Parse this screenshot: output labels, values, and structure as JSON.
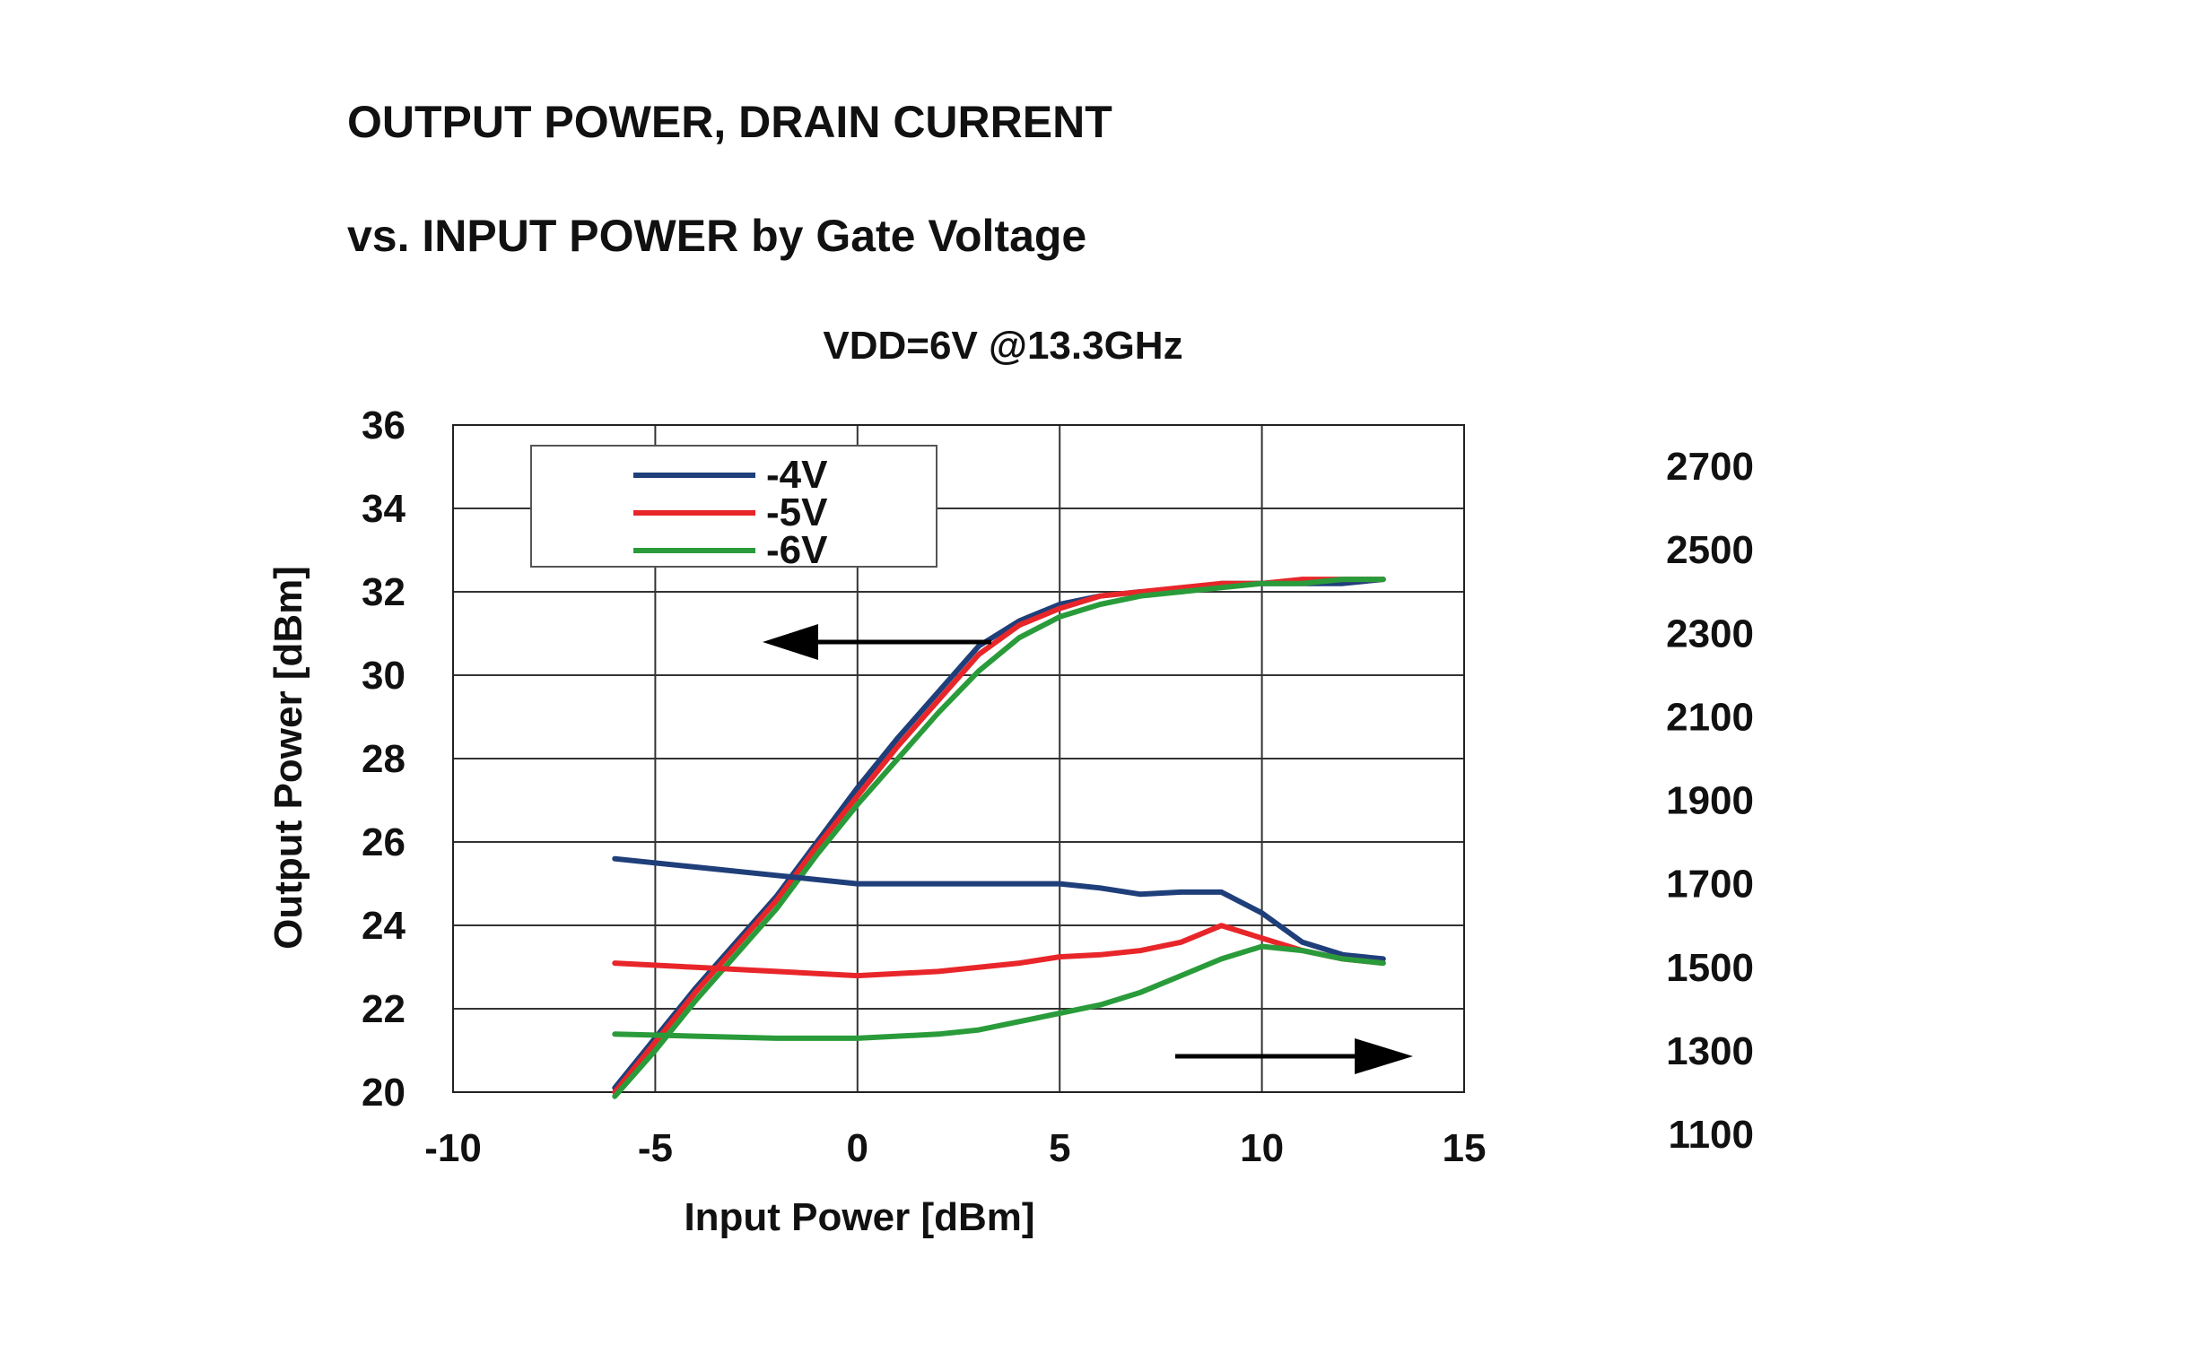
{
  "page": {
    "title_line1": "OUTPUT POWER, DRAIN CURRENT",
    "title_line2": "vs. INPUT POWER by Gate Voltage"
  },
  "chart_data": {
    "type": "line",
    "title": "VDD=6V @13.3GHz",
    "xlabel": "Input Power [dBm]",
    "ylabel": "Output Power [dBm]",
    "y2label": "",
    "xlim": [
      -10,
      15
    ],
    "ylim": [
      20,
      36
    ],
    "y2lim": [
      1100,
      2700
    ],
    "x_ticks": [
      -10,
      -5,
      0,
      5,
      10,
      15
    ],
    "x_tick_labels": [
      "-10",
      "-5",
      "0",
      "5",
      "10",
      "15"
    ],
    "y_ticks": [
      20,
      22,
      24,
      26,
      28,
      30,
      32,
      34,
      36
    ],
    "y_tick_labels": [
      "20",
      "22",
      "24",
      "26",
      "28",
      "30",
      "32",
      "34",
      "36"
    ],
    "y2_ticks": [
      1100,
      1300,
      1500,
      1700,
      1900,
      2100,
      2300,
      2500,
      2700
    ],
    "y2_tick_labels": [
      "1100",
      "1300",
      "1500",
      "1700",
      "1900",
      "2100",
      "2300",
      "2500",
      "2700"
    ],
    "grid": true,
    "legend_position": "top-left",
    "colors": {
      "-4V": "#1f3f7a",
      "-5V": "#e8262a",
      "-6V": "#2a9b3a"
    },
    "series": [
      {
        "name": "-4V",
        "axis": "left",
        "x": [
          -6,
          -5,
          -4,
          -3,
          -2,
          -1,
          0,
          1,
          2,
          3,
          4,
          5,
          6,
          7,
          8,
          9,
          10,
          11,
          12,
          13
        ],
        "values": [
          20.1,
          21.3,
          22.5,
          23.6,
          24.7,
          26.0,
          27.3,
          28.5,
          29.6,
          30.7,
          31.3,
          31.7,
          31.9,
          32.0,
          32.0,
          32.2,
          32.2,
          32.2,
          32.2,
          32.3
        ]
      },
      {
        "name": "-5V",
        "axis": "left",
        "x": [
          -6,
          -5,
          -4,
          -3,
          -2,
          -1,
          0,
          1,
          2,
          3,
          4,
          5,
          6,
          7,
          8,
          9,
          10,
          11,
          12,
          13
        ],
        "values": [
          20.0,
          21.2,
          22.4,
          23.5,
          24.6,
          25.9,
          27.1,
          28.3,
          29.4,
          30.5,
          31.2,
          31.6,
          31.9,
          32.0,
          32.1,
          32.2,
          32.2,
          32.3,
          32.3,
          32.3
        ]
      },
      {
        "name": "-6V",
        "axis": "left",
        "x": [
          -6,
          -5,
          -4,
          -3,
          -2,
          -1,
          0,
          1,
          2,
          3,
          4,
          5,
          6,
          7,
          8,
          9,
          10,
          11,
          12,
          13
        ],
        "values": [
          19.9,
          21.0,
          22.2,
          23.3,
          24.4,
          25.7,
          26.9,
          28.0,
          29.1,
          30.1,
          30.9,
          31.4,
          31.7,
          31.9,
          32.0,
          32.1,
          32.2,
          32.2,
          32.3,
          32.3
        ]
      },
      {
        "name": "-4V",
        "axis": "right",
        "x": [
          -6,
          -4,
          -2,
          0,
          2,
          4,
          5,
          6,
          7,
          8,
          9,
          10,
          11,
          12,
          13
        ],
        "values": [
          1760,
          1740,
          1720,
          1700,
          1700,
          1700,
          1700,
          1690,
          1675,
          1680,
          1680,
          1630,
          1560,
          1530,
          1520
        ]
      },
      {
        "name": "-5V",
        "axis": "right",
        "x": [
          -6,
          -4,
          -2,
          0,
          2,
          4,
          5,
          6,
          7,
          8,
          9,
          10,
          11,
          12,
          13
        ],
        "values": [
          1510,
          1500,
          1490,
          1480,
          1490,
          1510,
          1525,
          1530,
          1540,
          1560,
          1600,
          1570,
          1540,
          1520,
          1510
        ]
      },
      {
        "name": "-6V",
        "axis": "right",
        "x": [
          -6,
          -4,
          -2,
          0,
          2,
          3,
          4,
          5,
          6,
          7,
          8,
          9,
          10,
          11,
          12,
          13
        ],
        "values": [
          1340,
          1335,
          1330,
          1330,
          1340,
          1350,
          1370,
          1390,
          1410,
          1440,
          1480,
          1520,
          1550,
          1540,
          1520,
          1510
        ]
      }
    ]
  }
}
